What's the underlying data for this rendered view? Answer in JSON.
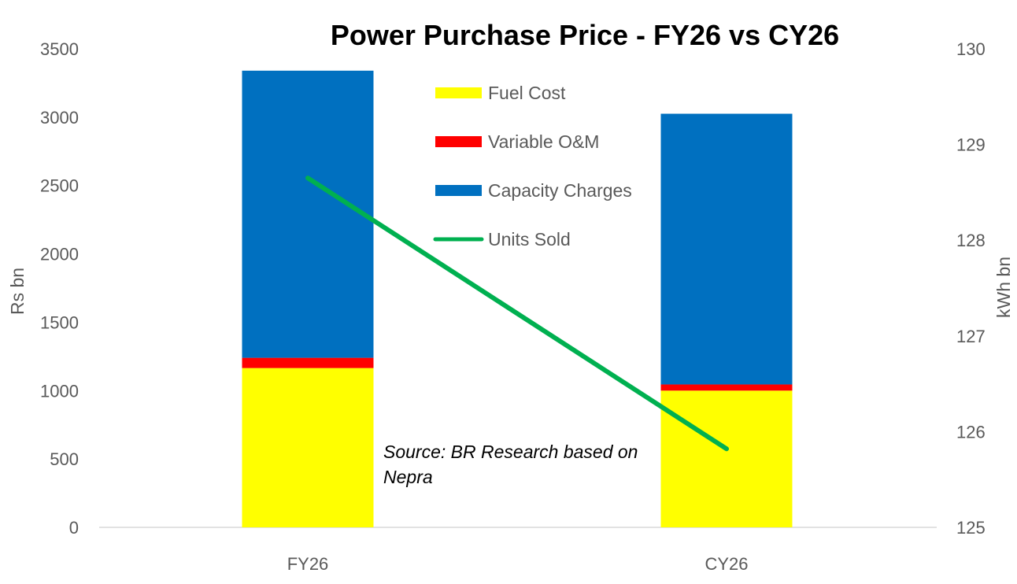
{
  "chart_data": {
    "type": "bar",
    "stacked": true,
    "title": "Power Purchase Price - FY26 vs CY26",
    "categories": [
      "FY26",
      "CY26"
    ],
    "series": [
      {
        "name": "Fuel Cost",
        "type": "bar",
        "axis": "left",
        "color": "#FFFF00",
        "values": [
          1165,
          1000
        ]
      },
      {
        "name": "Variable O&M",
        "type": "bar",
        "axis": "left",
        "color": "#FF0000",
        "values": [
          75,
          45
        ]
      },
      {
        "name": "Capacity Charges",
        "type": "bar",
        "axis": "left",
        "color": "#0070C0",
        "values": [
          2100,
          1980
        ]
      },
      {
        "name": "Units Sold",
        "type": "line",
        "axis": "right",
        "color": "#00B050",
        "values": [
          128.65,
          125.82
        ]
      }
    ],
    "ylabel": "Rs bn",
    "y2label": "kWh bn",
    "ylim": [
      0,
      3500
    ],
    "y2lim": [
      125,
      130
    ],
    "yticks": [
      "0",
      "500",
      "1000",
      "1500",
      "2000",
      "2500",
      "3000",
      "3500"
    ],
    "y2ticks": [
      "125",
      "126",
      "127",
      "128",
      "129",
      "130"
    ],
    "legend_position": "top-center",
    "grid": false,
    "annotation": [
      "Source: BR Research based on",
      "Nepra"
    ]
  }
}
